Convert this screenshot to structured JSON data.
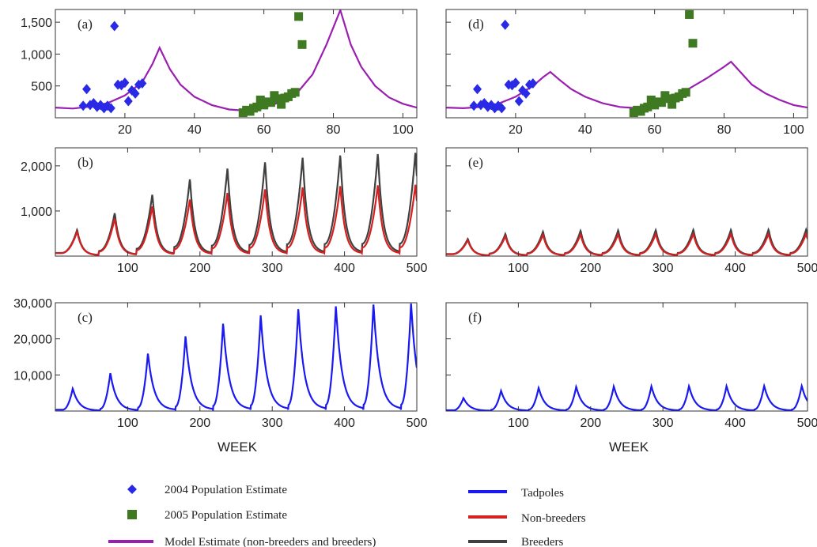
{
  "figure": {
    "xlabel": "WEEK",
    "colors": {
      "pop2004": "#2a2ae6",
      "pop2005": "#3f7a22",
      "model": "#9a1fb0",
      "tadpoles": "#1a1af0",
      "nonbreeders": "#d42020",
      "breeders": "#404040"
    }
  },
  "legend": {
    "items": [
      {
        "label": "2004 Population Estimate",
        "marker": "diamond",
        "color": "#2a2ae6"
      },
      {
        "label": "2005 Population Estimate",
        "marker": "square",
        "color": "#3f7a22"
      },
      {
        "label": "Model Estimate (non-breeders and breeders)",
        "marker": "line",
        "color": "#9a1fb0"
      },
      {
        "label": "Tadpoles",
        "marker": "line",
        "color": "#1a1af0"
      },
      {
        "label": "Non-breeders",
        "marker": "line",
        "color": "#d42020"
      },
      {
        "label": "Breeders",
        "marker": "line",
        "color": "#404040"
      }
    ]
  },
  "chart_data": [
    {
      "id": "a",
      "panel_label": "(a)",
      "type": "line",
      "xlim": [
        0,
        104
      ],
      "ylim": [
        0,
        1700
      ],
      "xticks": [
        20,
        40,
        60,
        80,
        100
      ],
      "xtick_labels": [
        "20",
        "40",
        "60",
        "80",
        "100"
      ],
      "yticks": [
        500,
        1000,
        1500
      ],
      "ytick_labels": [
        "500",
        "1,000",
        "1,500"
      ],
      "model_peaks": [
        {
          "x": 30,
          "y": 1100
        },
        {
          "x": 82,
          "y": 1690
        }
      ],
      "series": [
        {
          "kind": "model",
          "color": "#9a1fb0",
          "points": [
            [
              0,
              160
            ],
            [
              5,
              145
            ],
            [
              10,
              175
            ],
            [
              15,
              230
            ],
            [
              20,
              350
            ],
            [
              25,
              560
            ],
            [
              28,
              850
            ],
            [
              30,
              1100
            ],
            [
              33,
              760
            ],
            [
              36,
              520
            ],
            [
              40,
              330
            ],
            [
              45,
              200
            ],
            [
              50,
              130
            ],
            [
              55,
              110
            ],
            [
              60,
              160
            ],
            [
              65,
              250
            ],
            [
              70,
              420
            ],
            [
              74,
              680
            ],
            [
              78,
              1150
            ],
            [
              82,
              1690
            ],
            [
              85,
              1150
            ],
            [
              88,
              800
            ],
            [
              92,
              500
            ],
            [
              96,
              320
            ],
            [
              100,
              220
            ],
            [
              104,
              160
            ]
          ]
        },
        {
          "kind": "pop2004",
          "marker": "diamond",
          "color": "#2a2ae6",
          "points": [
            [
              8,
              190
            ],
            [
              9,
              450
            ],
            [
              10,
              200
            ],
            [
              11,
              230
            ],
            [
              12,
              170
            ],
            [
              13,
              200
            ],
            [
              14,
              150
            ],
            [
              15,
              190
            ],
            [
              16,
              150
            ],
            [
              17,
              1440
            ],
            [
              18,
              520
            ],
            [
              19,
              510
            ],
            [
              20,
              550
            ],
            [
              21,
              260
            ],
            [
              22,
              430
            ],
            [
              23,
              380
            ],
            [
              24,
              520
            ],
            [
              25,
              540
            ]
          ]
        },
        {
          "kind": "pop2005",
          "marker": "square",
          "color": "#3f7a22",
          "points": [
            [
              54,
              80
            ],
            [
              55,
              120
            ],
            [
              56,
              100
            ],
            [
              57,
              150
            ],
            [
              58,
              170
            ],
            [
              59,
              280
            ],
            [
              60,
              200
            ],
            [
              61,
              250
            ],
            [
              62,
              240
            ],
            [
              63,
              350
            ],
            [
              64,
              300
            ],
            [
              65,
              210
            ],
            [
              66,
              310
            ],
            [
              67,
              330
            ],
            [
              68,
              380
            ],
            [
              69,
              400
            ],
            [
              70,
              1590
            ],
            [
              71,
              1150
            ]
          ]
        }
      ]
    },
    {
      "id": "d",
      "panel_label": "(d)",
      "type": "line",
      "xlim": [
        0,
        104
      ],
      "ylim": [
        0,
        1700
      ],
      "xticks": [
        20,
        40,
        60,
        80,
        100
      ],
      "xtick_labels": [
        "20",
        "40",
        "60",
        "80",
        "100"
      ],
      "model_peaks": [
        {
          "x": 30,
          "y": 720
        },
        {
          "x": 82,
          "y": 880
        }
      ],
      "series": [
        {
          "kind": "model",
          "color": "#9a1fb0",
          "points": [
            [
              0,
              160
            ],
            [
              5,
              150
            ],
            [
              10,
              170
            ],
            [
              15,
              220
            ],
            [
              20,
              330
            ],
            [
              25,
              500
            ],
            [
              28,
              640
            ],
            [
              30,
              720
            ],
            [
              33,
              580
            ],
            [
              36,
              450
            ],
            [
              40,
              330
            ],
            [
              45,
              230
            ],
            [
              50,
              170
            ],
            [
              55,
              150
            ],
            [
              60,
              200
            ],
            [
              65,
              320
            ],
            [
              70,
              460
            ],
            [
              75,
              620
            ],
            [
              80,
              800
            ],
            [
              82,
              880
            ],
            [
              85,
              700
            ],
            [
              88,
              520
            ],
            [
              92,
              380
            ],
            [
              96,
              280
            ],
            [
              100,
              200
            ],
            [
              104,
              160
            ]
          ]
        },
        {
          "kind": "pop2004",
          "marker": "diamond",
          "color": "#2a2ae6",
          "points": [
            [
              8,
              190
            ],
            [
              9,
              450
            ],
            [
              10,
              200
            ],
            [
              11,
              230
            ],
            [
              12,
              170
            ],
            [
              13,
              200
            ],
            [
              14,
              150
            ],
            [
              15,
              190
            ],
            [
              16,
              150
            ],
            [
              17,
              1460
            ],
            [
              18,
              520
            ],
            [
              19,
              510
            ],
            [
              20,
              550
            ],
            [
              21,
              260
            ],
            [
              22,
              430
            ],
            [
              23,
              380
            ],
            [
              24,
              520
            ],
            [
              25,
              540
            ]
          ]
        },
        {
          "kind": "pop2005",
          "marker": "square",
          "color": "#3f7a22",
          "points": [
            [
              54,
              80
            ],
            [
              55,
              120
            ],
            [
              56,
              100
            ],
            [
              57,
              150
            ],
            [
              58,
              170
            ],
            [
              59,
              280
            ],
            [
              60,
              200
            ],
            [
              61,
              250
            ],
            [
              62,
              240
            ],
            [
              63,
              350
            ],
            [
              64,
              300
            ],
            [
              65,
              210
            ],
            [
              66,
              310
            ],
            [
              67,
              330
            ],
            [
              68,
              380
            ],
            [
              69,
              400
            ],
            [
              70,
              1620
            ],
            [
              71,
              1170
            ]
          ]
        }
      ]
    },
    {
      "id": "b",
      "panel_label": "(b)",
      "type": "line",
      "xlim": [
        0,
        500
      ],
      "ylim": [
        0,
        2400
      ],
      "xticks": [
        100,
        200,
        300,
        400,
        500
      ],
      "xtick_labels": [
        "100",
        "200",
        "300",
        "400",
        "500"
      ],
      "yticks": [
        1000,
        2000
      ],
      "ytick_labels": [
        "1,000",
        "2,000"
      ],
      "period": 52,
      "series": [
        {
          "kind": "breeders",
          "name": "Breeders",
          "color": "#404040",
          "peaks": [
            {
              "x": 30,
              "y": 580
            },
            {
              "x": 82,
              "y": 950
            },
            {
              "x": 134,
              "y": 1360
            },
            {
              "x": 186,
              "y": 1700
            },
            {
              "x": 238,
              "y": 1940
            },
            {
              "x": 290,
              "y": 2080
            },
            {
              "x": 342,
              "y": 2180
            },
            {
              "x": 394,
              "y": 2230
            },
            {
              "x": 446,
              "y": 2260
            },
            {
              "x": 498,
              "y": 2290
            }
          ]
        },
        {
          "kind": "nonbreeders",
          "name": "Non-breeders",
          "color": "#d42020",
          "peaks": [
            {
              "x": 30,
              "y": 540
            },
            {
              "x": 82,
              "y": 830
            },
            {
              "x": 134,
              "y": 1100
            },
            {
              "x": 186,
              "y": 1250
            },
            {
              "x": 238,
              "y": 1400
            },
            {
              "x": 290,
              "y": 1480
            },
            {
              "x": 342,
              "y": 1520
            },
            {
              "x": 394,
              "y": 1550
            },
            {
              "x": 446,
              "y": 1570
            },
            {
              "x": 498,
              "y": 1580
            }
          ]
        }
      ]
    },
    {
      "id": "e",
      "panel_label": "(e)",
      "type": "line",
      "xlim": [
        0,
        500
      ],
      "ylim": [
        0,
        2400
      ],
      "xticks": [
        100,
        200,
        300,
        400,
        500
      ],
      "xtick_labels": [
        "100",
        "200",
        "300",
        "400",
        "500"
      ],
      "period": 52,
      "series": [
        {
          "kind": "breeders",
          "name": "Breeders",
          "color": "#404040",
          "peaks": [
            {
              "x": 30,
              "y": 380
            },
            {
              "x": 82,
              "y": 490
            },
            {
              "x": 134,
              "y": 540
            },
            {
              "x": 186,
              "y": 560
            },
            {
              "x": 238,
              "y": 570
            },
            {
              "x": 290,
              "y": 575
            },
            {
              "x": 342,
              "y": 580
            },
            {
              "x": 394,
              "y": 580
            },
            {
              "x": 446,
              "y": 585
            },
            {
              "x": 498,
              "y": 585
            }
          ]
        },
        {
          "kind": "nonbreeders",
          "name": "Non-breeders",
          "color": "#d42020",
          "peaks": [
            {
              "x": 30,
              "y": 350
            },
            {
              "x": 82,
              "y": 440
            },
            {
              "x": 134,
              "y": 470
            },
            {
              "x": 186,
              "y": 480
            },
            {
              "x": 238,
              "y": 485
            },
            {
              "x": 290,
              "y": 490
            },
            {
              "x": 342,
              "y": 490
            },
            {
              "x": 394,
              "y": 490
            },
            {
              "x": 446,
              "y": 490
            },
            {
              "x": 498,
              "y": 490
            }
          ]
        }
      ]
    },
    {
      "id": "c",
      "panel_label": "(c)",
      "type": "line",
      "xlim": [
        0,
        500
      ],
      "ylim": [
        0,
        30000
      ],
      "xticks": [
        100,
        200,
        300,
        400,
        500
      ],
      "xtick_labels": [
        "100",
        "200",
        "300",
        "400",
        "500"
      ],
      "yticks": [
        10000,
        20000,
        30000
      ],
      "ytick_labels": [
        "10,000",
        "20,000",
        "30,000"
      ],
      "period": 52,
      "series": [
        {
          "kind": "tadpoles",
          "name": "Tadpoles",
          "color": "#1a1af0",
          "peaks": [
            {
              "x": 24,
              "y": 6200
            },
            {
              "x": 76,
              "y": 10500
            },
            {
              "x": 128,
              "y": 15900
            },
            {
              "x": 180,
              "y": 20700
            },
            {
              "x": 232,
              "y": 24200
            },
            {
              "x": 284,
              "y": 26500
            },
            {
              "x": 336,
              "y": 28200
            },
            {
              "x": 388,
              "y": 29000
            },
            {
              "x": 440,
              "y": 29500
            },
            {
              "x": 492,
              "y": 29800
            }
          ]
        }
      ]
    },
    {
      "id": "f",
      "panel_label": "(f)",
      "type": "line",
      "xlim": [
        0,
        500
      ],
      "ylim": [
        0,
        30000
      ],
      "xticks": [
        100,
        200,
        300,
        400,
        500
      ],
      "xtick_labels": [
        "100",
        "200",
        "300",
        "400",
        "500"
      ],
      "period": 52,
      "series": [
        {
          "kind": "tadpoles",
          "name": "Tadpoles",
          "color": "#1a1af0",
          "peaks": [
            {
              "x": 24,
              "y": 3600
            },
            {
              "x": 76,
              "y": 5600
            },
            {
              "x": 128,
              "y": 6400
            },
            {
              "x": 180,
              "y": 6700
            },
            {
              "x": 232,
              "y": 6800
            },
            {
              "x": 284,
              "y": 6850
            },
            {
              "x": 336,
              "y": 6900
            },
            {
              "x": 388,
              "y": 6900
            },
            {
              "x": 440,
              "y": 6950
            },
            {
              "x": 492,
              "y": 6950
            }
          ]
        }
      ]
    }
  ]
}
